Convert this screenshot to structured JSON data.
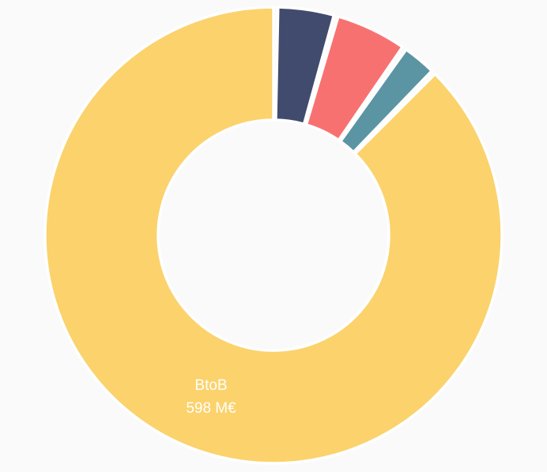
{
  "chart_data": {
    "type": "pie",
    "variant": "donut",
    "slices": [
      {
        "name": "",
        "value": 29,
        "color": "#414b6e"
      },
      {
        "name": "",
        "value": 36,
        "color": "#f87171"
      },
      {
        "name": "",
        "value": 18,
        "color": "#5b95a3"
      },
      {
        "name": "BtoB",
        "value": 598,
        "unit": "M€",
        "color": "#fbd26c",
        "value_label": "598 M€"
      }
    ],
    "legend": "none",
    "background": "#fafafa"
  }
}
